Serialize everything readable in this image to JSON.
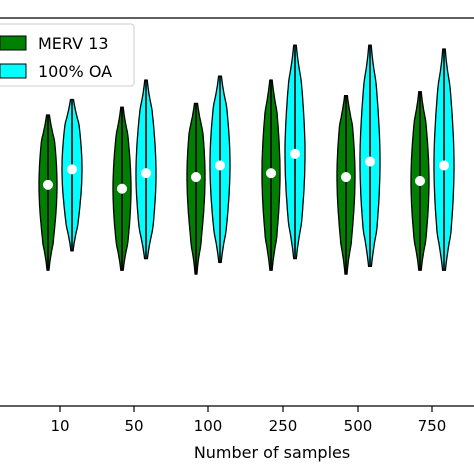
{
  "chart_data": {
    "type": "violin",
    "title": "",
    "xlabel": "Number of samples",
    "ylabel": "",
    "categories": [
      "10",
      "50",
      "100",
      "250",
      "500",
      "750"
    ],
    "ylim": [
      0.0,
      1.0
    ],
    "grid": false,
    "legend": {
      "placement": "top-left",
      "entries": [
        {
          "name": "MERV 13",
          "color": "#008000"
        },
        {
          "name": "100% OA",
          "color": "#00FFFF"
        }
      ]
    },
    "series": [
      {
        "name": "MERV 13",
        "color": "#008000",
        "values": [
          {
            "category": "10",
            "min": 0.35,
            "max": 0.75,
            "median": 0.57
          },
          {
            "category": "50",
            "min": 0.35,
            "max": 0.77,
            "median": 0.56
          },
          {
            "category": "100",
            "min": 0.34,
            "max": 0.78,
            "median": 0.59
          },
          {
            "category": "250",
            "min": 0.35,
            "max": 0.84,
            "median": 0.6
          },
          {
            "category": "500",
            "min": 0.34,
            "max": 0.8,
            "median": 0.59
          },
          {
            "category": "750",
            "min": 0.35,
            "max": 0.81,
            "median": 0.58
          }
        ]
      },
      {
        "name": "100% OA",
        "color": "#00FFFF",
        "values": [
          {
            "category": "10",
            "min": 0.4,
            "max": 0.79,
            "median": 0.61
          },
          {
            "category": "50",
            "min": 0.38,
            "max": 0.84,
            "median": 0.6
          },
          {
            "category": "100",
            "min": 0.37,
            "max": 0.85,
            "median": 0.62
          },
          {
            "category": "250",
            "min": 0.38,
            "max": 0.93,
            "median": 0.65
          },
          {
            "category": "500",
            "min": 0.36,
            "max": 0.93,
            "median": 0.63
          },
          {
            "category": "750",
            "min": 0.35,
            "max": 0.92,
            "median": 0.62
          }
        ]
      }
    ]
  }
}
